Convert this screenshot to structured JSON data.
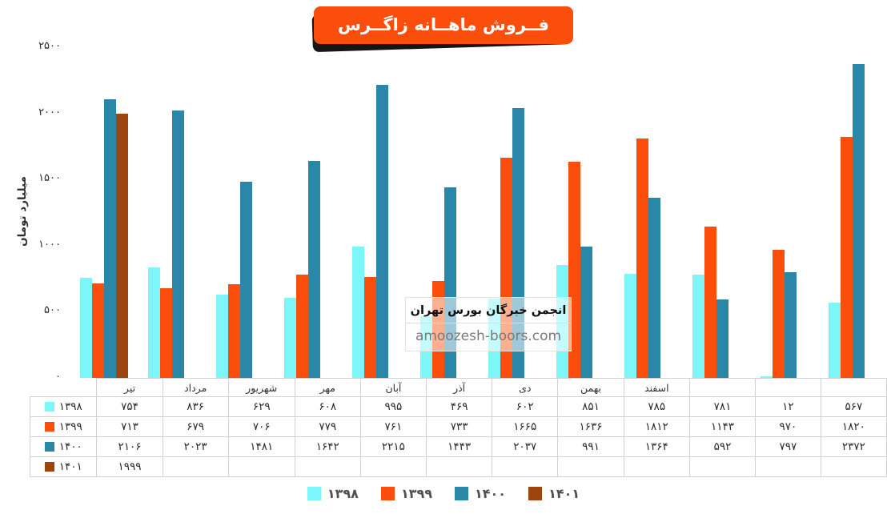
{
  "title": "فــروش ماهــانه زاگــرس",
  "y_axis": {
    "label": "میلیارد تومان",
    "ticks": [
      0,
      500,
      1000,
      1500,
      2000,
      2500
    ],
    "max": 2500
  },
  "watermark": {
    "line1": "انجمن خبرگان بورس تهران",
    "line2": "amoozesh-boors.com"
  },
  "colors": {
    "series_1398": "#7cf6f9",
    "series_1399": "#fb4e0d",
    "series_1400": "#2b87a8",
    "series_1401": "#9c450d",
    "title_bg": "#fb4e0d",
    "title_text": "#ffffff",
    "table_border": "#d2d2d2"
  },
  "chart_data": {
    "type": "bar",
    "title": "فروش ماهانه زاگرس",
    "ylabel": "میلیارد تومان",
    "ylim": [
      0,
      2500
    ],
    "grid": false,
    "legend_position": "bottom",
    "categories": [
      "تیر",
      "مرداد",
      "شهریور",
      "مهر",
      "آبان",
      "آذر",
      "دی",
      "بهمن",
      "اسفند",
      "",
      "",
      ""
    ],
    "series": [
      {
        "name": 1398,
        "color": "#7cf6f9",
        "values": [
          754,
          836,
          629,
          608,
          995,
          469,
          602,
          851,
          785,
          781,
          12,
          567
        ]
      },
      {
        "name": 1399,
        "color": "#fb4e0d",
        "values": [
          713,
          679,
          706,
          779,
          761,
          733,
          1665,
          1636,
          1812,
          1143,
          970,
          1820
        ]
      },
      {
        "name": 1400,
        "color": "#2b87a8",
        "values": [
          2106,
          2023,
          1481,
          1642,
          2215,
          1443,
          2037,
          991,
          1364,
          592,
          797,
          2372
        ]
      },
      {
        "name": 1401,
        "color": "#9c450d",
        "values": [
          1999,
          null,
          null,
          null,
          null,
          null,
          null,
          null,
          null,
          null,
          null,
          null
        ]
      }
    ]
  }
}
